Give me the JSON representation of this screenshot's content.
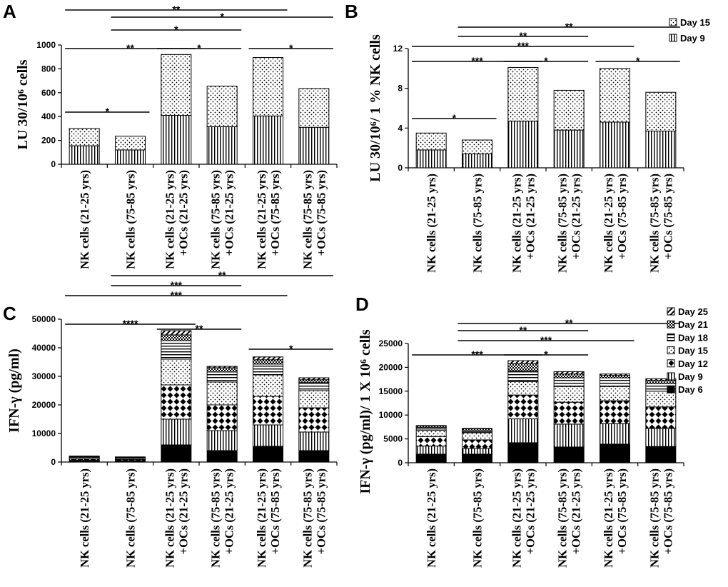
{
  "chart_data": [
    {
      "panel": "A",
      "type": "stacked-bar",
      "ylabel": "LU 30/10⁶ cells",
      "ylim": [
        0,
        1000
      ],
      "yticks": [
        "0",
        "200",
        "400",
        "600",
        "800",
        "1000"
      ],
      "categories": [
        [
          "NK cells (21-25 yrs)"
        ],
        [
          "NK cells (75-85 yrs)"
        ],
        [
          "NK cells (21-25 yrs)",
          "+OCs (21-25 yrs)"
        ],
        [
          "NK cells (75-85 yrs)",
          "+OCs (21-25 yrs)"
        ],
        [
          "NK cells (21-25 yrs)",
          "+OCs (75-85 yrs)"
        ],
        [
          "NK cells (75-85 yrs)",
          "+OCs (75-85 yrs)"
        ]
      ],
      "series": [
        {
          "name": "Day 9",
          "pattern": "vlines",
          "values": [
            155,
            120,
            410,
            315,
            405,
            310
          ]
        },
        {
          "name": "Day 15",
          "pattern": "dots",
          "values": [
            145,
            115,
            510,
            340,
            490,
            325
          ]
        }
      ],
      "legend": [],
      "significance": [
        {
          "from": 0,
          "to": 4,
          "label": "**"
        },
        {
          "from": 1,
          "to": 5,
          "label": "*"
        },
        {
          "from": 1,
          "to": 3,
          "label": "*"
        },
        {
          "from": 0,
          "to": 2,
          "label": "**"
        },
        {
          "from": 2,
          "to": 3,
          "label": "*"
        },
        {
          "from": 4,
          "to": 5,
          "label": "*"
        },
        {
          "from": 0,
          "to": 1,
          "label": "*"
        }
      ]
    },
    {
      "panel": "B",
      "type": "stacked-bar",
      "ylabel": "LU 30/10⁶/ 1 % NK cells",
      "ylim": [
        0,
        12
      ],
      "yticks": [
        "0",
        "4",
        "8",
        "12"
      ],
      "categories": [
        [
          "NK cells (21-25 yrs)"
        ],
        [
          "NK cells (75-85 yrs)"
        ],
        [
          "NK cells (21-25 yrs)",
          "+OCs (21-25 yrs)"
        ],
        [
          "NK cells (75-85 yrs)",
          "+OCs (21-25 yrs)"
        ],
        [
          "NK cells (21-25 yrs)",
          "+OCs (75-85 yrs)"
        ],
        [
          "NK cells (75-85 yrs)",
          "+OCs (75-85 yrs)"
        ]
      ],
      "series": [
        {
          "name": "Day 9",
          "pattern": "vlines",
          "values": [
            1.8,
            1.4,
            4.7,
            3.8,
            4.6,
            3.7
          ]
        },
        {
          "name": "Day 15",
          "pattern": "dots",
          "values": [
            1.7,
            1.4,
            5.4,
            4.0,
            5.4,
            3.9
          ]
        }
      ],
      "legend": [
        "Day 15",
        "Day 9"
      ],
      "significance": [
        {
          "from": 1,
          "to": 5,
          "label": "**"
        },
        {
          "from": 1,
          "to": 3,
          "label": "**"
        },
        {
          "from": 0,
          "to": 4,
          "label": "***"
        },
        {
          "from": 0,
          "to": 2,
          "label": "***"
        },
        {
          "from": 2,
          "to": 3,
          "label": "*"
        },
        {
          "from": 4,
          "to": 5,
          "label": "*"
        },
        {
          "from": 0,
          "to": 1,
          "label": "*"
        }
      ]
    },
    {
      "panel": "C",
      "type": "stacked-bar",
      "ylabel": "IFN-γ (pg/ml)",
      "ylim": [
        0,
        50000
      ],
      "yticks": [
        "0",
        "10000",
        "20000",
        "30000",
        "40000",
        "50000"
      ],
      "categories": [
        [
          "NK cells (21-25 yrs)"
        ],
        [
          "NK cells (75-85 yrs)"
        ],
        [
          "NK cells (21-25 yrs)",
          "+OCs (21-25 yrs)"
        ],
        [
          "NK cells (75-85 yrs)",
          "+OCs (21-25 yrs)"
        ],
        [
          "NK cells (21-25 yrs)",
          "+OCs (75-85 yrs)"
        ],
        [
          "NK cells (75-85 yrs)",
          "+OCs (75-85 yrs)"
        ]
      ],
      "series": [
        {
          "name": "Day 6",
          "pattern": "solid",
          "values": [
            300,
            250,
            6000,
            4000,
            5500,
            4000
          ]
        },
        {
          "name": "Day 9",
          "pattern": "vlines",
          "values": [
            300,
            250,
            9000,
            7000,
            7500,
            6500
          ]
        },
        {
          "name": "Day 12",
          "pattern": "diamonds",
          "values": [
            500,
            450,
            12000,
            9000,
            10000,
            8500
          ]
        },
        {
          "name": "Day 15",
          "pattern": "dots",
          "values": [
            500,
            400,
            9000,
            8000,
            7500,
            6000
          ]
        },
        {
          "name": "Day 18",
          "pattern": "hlines",
          "values": [
            300,
            250,
            6500,
            3500,
            3800,
            2800
          ]
        },
        {
          "name": "Day 21",
          "pattern": "checker",
          "values": [
            100,
            100,
            2000,
            1500,
            1500,
            1000
          ]
        },
        {
          "name": "Day 25",
          "pattern": "diag",
          "values": [
            100,
            100,
            1500,
            500,
            1000,
            700
          ]
        }
      ],
      "legend": [],
      "significance": [
        {
          "from": 1,
          "to": 5,
          "label": "**"
        },
        {
          "from": 1,
          "to": 3,
          "label": "***"
        },
        {
          "from": 0,
          "to": 4,
          "label": "***"
        },
        {
          "from": 0,
          "to": 2,
          "label": "****"
        },
        {
          "from": 2,
          "to": 3,
          "label": "**"
        },
        {
          "from": 4,
          "to": 5,
          "label": "*"
        }
      ]
    },
    {
      "panel": "D",
      "type": "stacked-bar",
      "ylabel": "IFN-γ (pg/ml)/ 1 X 10⁶ cells",
      "ylim": [
        0,
        25000
      ],
      "yticks": [
        "0",
        "5000",
        "10000",
        "15000",
        "20000",
        "25000"
      ],
      "categories": [
        [
          "NK cells (21-25 yrs)"
        ],
        [
          "NK cells (75-85 yrs)"
        ],
        [
          "NK cells (21-25 yrs)",
          "+OCs (21-25 yrs)"
        ],
        [
          "NK cells (75-85 yrs)",
          "+OCs (21-25 yrs)"
        ],
        [
          "NK cells (21-25 yrs)",
          "+OCs (75-85 yrs)"
        ],
        [
          "NK cells (75-85 yrs)",
          "+OCs (75-85 yrs)"
        ]
      ],
      "series": [
        {
          "name": "Day 6",
          "pattern": "solid",
          "values": [
            1800,
            1800,
            4200,
            3300,
            3900,
            3400
          ]
        },
        {
          "name": "Day 9",
          "pattern": "vlines",
          "values": [
            1700,
            1200,
            5000,
            4800,
            4300,
            3800
          ]
        },
        {
          "name": "Day 12",
          "pattern": "diamonds",
          "values": [
            2000,
            1800,
            5000,
            4600,
            4800,
            4500
          ]
        },
        {
          "name": "Day 15",
          "pattern": "dots",
          "values": [
            1300,
            1500,
            2800,
            3300,
            3000,
            3300
          ]
        },
        {
          "name": "Day 18",
          "pattern": "hlines",
          "values": [
            600,
            500,
            2300,
            1800,
            1800,
            1600
          ]
        },
        {
          "name": "Day 21",
          "pattern": "checker",
          "values": [
            300,
            300,
            1500,
            800,
            500,
            700
          ]
        },
        {
          "name": "Day 25",
          "pattern": "diag",
          "values": [
            100,
            100,
            600,
            500,
            300,
            300
          ]
        }
      ],
      "legend": [
        "Day 25",
        "Day 21",
        "Day 18",
        "Day 15",
        "Day 12",
        "Day 9",
        "Day 6"
      ],
      "significance": [
        {
          "from": 1,
          "to": 5,
          "label": "**"
        },
        {
          "from": 1,
          "to": 3,
          "label": "**"
        },
        {
          "from": 1,
          "to": 4,
          "label": "***"
        },
        {
          "from": 0,
          "to": 2,
          "label": "***"
        },
        {
          "from": 2,
          "to": 3,
          "label": "*"
        }
      ]
    }
  ]
}
